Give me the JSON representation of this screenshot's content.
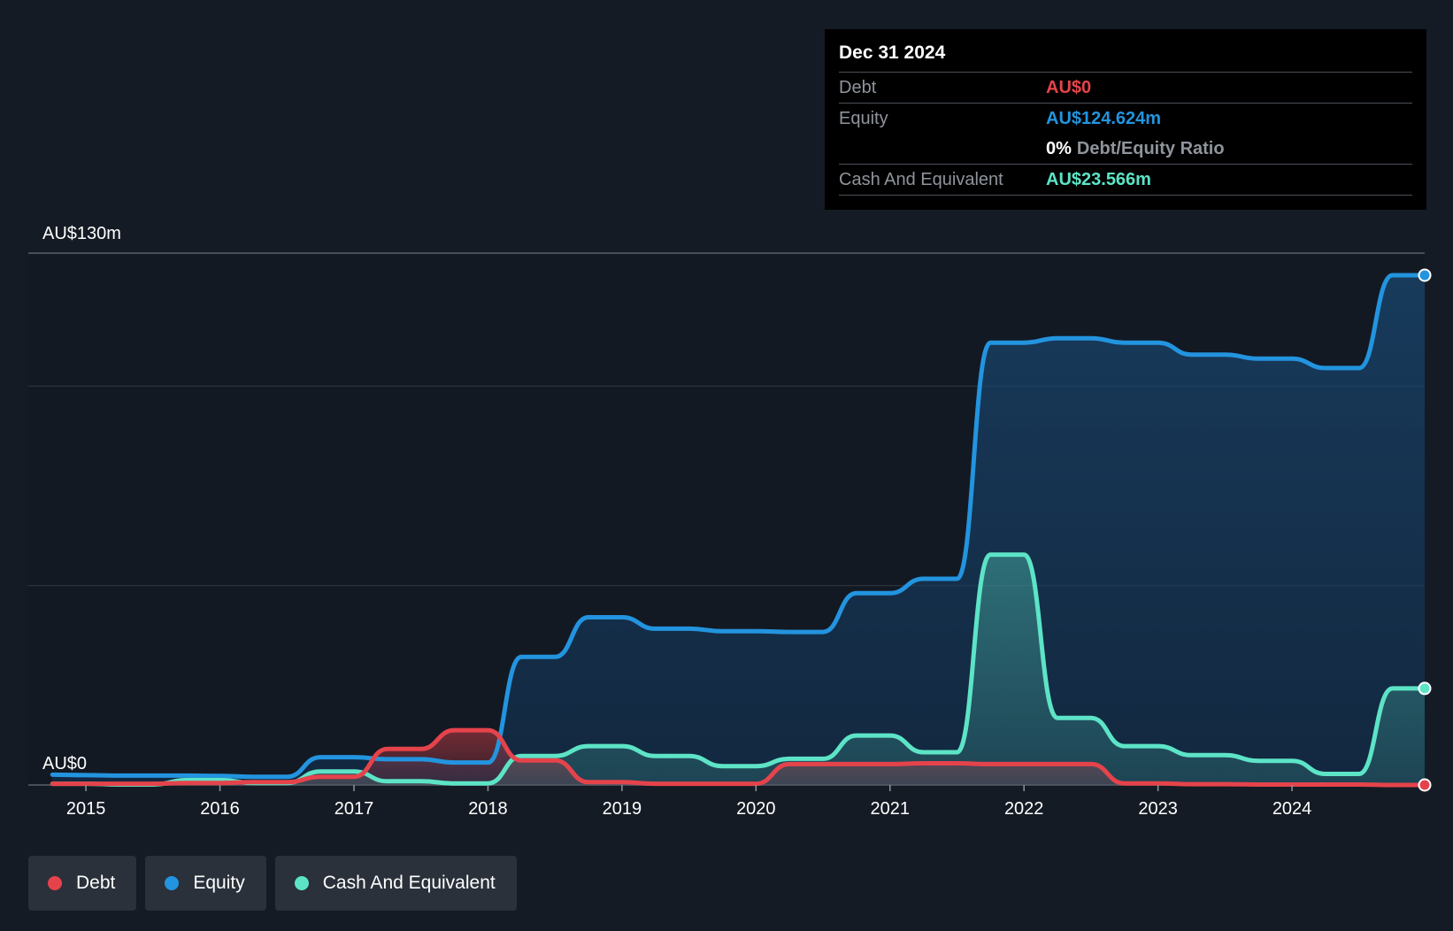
{
  "tooltip": {
    "date": "Dec 31 2024",
    "debt_label": "Debt",
    "debt_value": "AU$0",
    "equity_label": "Equity",
    "equity_value": "AU$124.624m",
    "ratio_value": "0%",
    "ratio_label": "Debt/Equity Ratio",
    "cash_label": "Cash And Equivalent",
    "cash_value": "AU$23.566m"
  },
  "legend": [
    {
      "label": "Debt",
      "color": "#e5434b"
    },
    {
      "label": "Equity",
      "color": "#2394df"
    },
    {
      "label": "Cash And Equivalent",
      "color": "#5de4c7"
    }
  ],
  "chart_data": {
    "type": "area",
    "y_top_label": "AU$130m",
    "y_bottom_label": "AU$0",
    "ylim": [
      0,
      130
    ],
    "xlim": [
      2014.57,
      2024.99
    ],
    "x_ticks": [
      "2015",
      "2016",
      "2017",
      "2018",
      "2019",
      "2020",
      "2021",
      "2022",
      "2023",
      "2024"
    ],
    "grid": true,
    "legend_position": "bottom-left",
    "colors": {
      "debt": "#e5434b",
      "equity": "#2394df",
      "cash": "#5de4c7"
    },
    "series": [
      {
        "name": "Equity",
        "x": [
          2014.75,
          2015.0,
          2015.25,
          2015.5,
          2015.75,
          2016.0,
          2016.25,
          2016.5,
          2016.75,
          2017.0,
          2017.25,
          2017.5,
          2017.75,
          2018.0,
          2018.25,
          2018.5,
          2018.75,
          2019.0,
          2019.25,
          2019.5,
          2019.75,
          2020.0,
          2020.25,
          2020.5,
          2020.75,
          2021.0,
          2021.25,
          2021.5,
          2021.75,
          2022.0,
          2022.25,
          2022.5,
          2022.75,
          2023.0,
          2023.25,
          2023.5,
          2023.75,
          2024.0,
          2024.25,
          2024.5,
          2024.75,
          2024.99
        ],
        "values": [
          2.5,
          2.4,
          2.3,
          2.3,
          2.3,
          2.2,
          2.0,
          2.0,
          6.8,
          6.8,
          6.3,
          6.3,
          5.5,
          5.5,
          31.3,
          31.3,
          41.0,
          41.0,
          38.2,
          38.2,
          37.6,
          37.6,
          37.4,
          37.4,
          46.9,
          46.9,
          50.4,
          50.4,
          108.1,
          108.1,
          109.2,
          109.2,
          108.1,
          108.1,
          105.2,
          105.2,
          104.2,
          104.2,
          101.9,
          101.9,
          124.6,
          124.6
        ]
      },
      {
        "name": "Cash And Equivalent",
        "x": [
          2014.75,
          2015.0,
          2015.25,
          2015.5,
          2015.75,
          2016.0,
          2016.25,
          2016.5,
          2016.75,
          2017.0,
          2017.25,
          2017.5,
          2017.75,
          2018.0,
          2018.25,
          2018.5,
          2018.75,
          2019.0,
          2019.25,
          2019.5,
          2019.75,
          2020.0,
          2020.25,
          2020.5,
          2020.75,
          2021.0,
          2021.25,
          2021.5,
          2021.75,
          2022.0,
          2022.25,
          2022.5,
          2022.75,
          2023.0,
          2023.25,
          2023.5,
          2023.75,
          2024.0,
          2024.25,
          2024.5,
          2024.75,
          2024.99
        ],
        "values": [
          0.3,
          0.3,
          0.1,
          0.1,
          1.2,
          1.2,
          0.5,
          0.5,
          3.3,
          3.3,
          0.9,
          0.9,
          0.4,
          0.4,
          7.1,
          7.1,
          9.5,
          9.5,
          7.1,
          7.1,
          4.6,
          4.6,
          6.4,
          6.4,
          12.1,
          12.1,
          8.0,
          8.0,
          56.3,
          56.3,
          16.4,
          16.4,
          9.5,
          9.5,
          7.3,
          7.3,
          5.9,
          5.9,
          2.7,
          2.7,
          23.6,
          23.6
        ]
      },
      {
        "name": "Debt",
        "x": [
          2014.75,
          2015.0,
          2015.25,
          2015.5,
          2015.75,
          2016.0,
          2016.25,
          2016.5,
          2016.75,
          2017.0,
          2017.25,
          2017.5,
          2017.75,
          2018.0,
          2018.25,
          2018.5,
          2018.75,
          2019.0,
          2019.25,
          2019.5,
          2019.75,
          2020.0,
          2020.25,
          2020.5,
          2020.75,
          2021.0,
          2021.25,
          2021.5,
          2021.75,
          2022.0,
          2022.25,
          2022.5,
          2022.75,
          2023.0,
          2023.25,
          2023.5,
          2023.75,
          2024.0,
          2024.25,
          2024.5,
          2024.75,
          2024.99
        ],
        "values": [
          0.3,
          0.3,
          0.3,
          0.3,
          0.5,
          0.5,
          0.7,
          0.7,
          2.0,
          2.0,
          8.8,
          8.8,
          13.4,
          13.4,
          6.0,
          6.0,
          0.7,
          0.7,
          0.3,
          0.3,
          0.3,
          0.3,
          5.1,
          5.1,
          5.1,
          5.1,
          5.3,
          5.3,
          5.1,
          5.1,
          5.1,
          5.1,
          0.4,
          0.4,
          0.2,
          0.2,
          0.1,
          0.1,
          0.1,
          0.1,
          0.0,
          0.0
        ]
      }
    ]
  }
}
